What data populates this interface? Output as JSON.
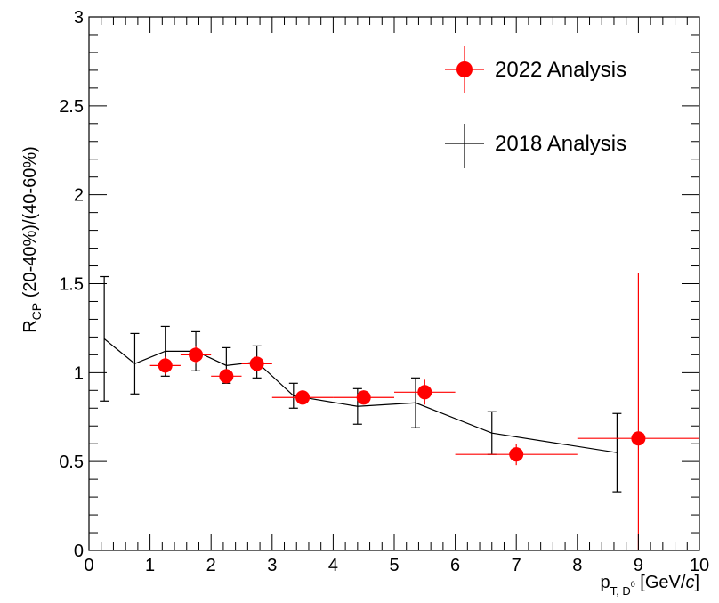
{
  "chart_data": {
    "type": "scatter",
    "title": "",
    "xlim": [
      0,
      10
    ],
    "ylim": [
      0,
      3
    ],
    "x_ticks": [
      "0",
      "1",
      "2",
      "3",
      "4",
      "5",
      "6",
      "7",
      "8",
      "9",
      "10"
    ],
    "y_ticks": [
      "0",
      "0.5",
      "1",
      "1.5",
      "2",
      "2.5",
      "3"
    ],
    "xlabel": {
      "main": "p",
      "sub": "T, D",
      "sup": "0",
      "unit_prefix": " [GeV/",
      "unit_italic": "c",
      "unit_suffix": "]"
    },
    "ylabel": {
      "main": "R",
      "sub": "CP",
      "rest": " (20-40%)/(40-60%)"
    },
    "legend_position": "top-right",
    "series": [
      {
        "name": "2022 Analysis",
        "color": "#ff0000",
        "style": "markers-with-xy-error-bars",
        "points": [
          {
            "x": 1.25,
            "y": 1.04,
            "xerr": 0.25,
            "yerr": 0.05
          },
          {
            "x": 1.75,
            "y": 1.1,
            "xerr": 0.25,
            "yerr": 0.05
          },
          {
            "x": 2.25,
            "y": 0.98,
            "xerr": 0.25,
            "yerr": 0.04
          },
          {
            "x": 2.75,
            "y": 1.05,
            "xerr": 0.25,
            "yerr": 0.04
          },
          {
            "x": 3.5,
            "y": 0.86,
            "xerr": 0.5,
            "yerr": 0.04
          },
          {
            "x": 4.5,
            "y": 0.86,
            "xerr": 0.5,
            "yerr": 0.04
          },
          {
            "x": 5.5,
            "y": 0.89,
            "xerr": 0.5,
            "yerr": 0.07
          },
          {
            "x": 7.0,
            "y": 0.54,
            "xerr": 1.0,
            "yerr": 0.06
          },
          {
            "x": 9.0,
            "y": 0.63,
            "xerr": 1.0,
            "yerr": 0.93
          }
        ]
      },
      {
        "name": "2018 Analysis",
        "color": "#000000",
        "style": "line-with-y-error-bars",
        "points": [
          {
            "x": 0.25,
            "y": 1.19,
            "yerr": 0.35
          },
          {
            "x": 0.75,
            "y": 1.05,
            "yerr": 0.17
          },
          {
            "x": 1.25,
            "y": 1.12,
            "yerr": 0.14
          },
          {
            "x": 1.75,
            "y": 1.12,
            "yerr": 0.11
          },
          {
            "x": 2.25,
            "y": 1.04,
            "yerr": 0.1
          },
          {
            "x": 2.75,
            "y": 1.06,
            "yerr": 0.09
          },
          {
            "x": 3.35,
            "y": 0.87,
            "yerr": 0.07
          },
          {
            "x": 4.4,
            "y": 0.81,
            "yerr": 0.1
          },
          {
            "x": 5.35,
            "y": 0.83,
            "yerr": 0.14
          },
          {
            "x": 6.6,
            "y": 0.66,
            "yerr": 0.12
          },
          {
            "x": 8.65,
            "y": 0.55,
            "yerr": 0.22
          }
        ]
      }
    ]
  }
}
